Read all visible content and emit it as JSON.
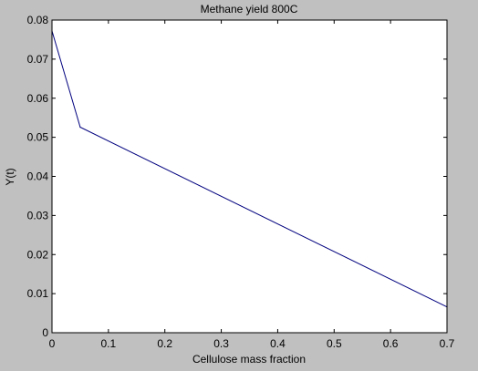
{
  "chart_data": {
    "type": "line",
    "title": "Methane yield 800C",
    "xlabel": "Cellulose mass fraction",
    "ylabel": "Y(t)",
    "xlim": [
      0,
      0.7
    ],
    "ylim": [
      0,
      0.08
    ],
    "x_ticks": [
      "0",
      "0.1",
      "0.2",
      "0.3",
      "0.4",
      "0.5",
      "0.6",
      "0.7"
    ],
    "y_ticks": [
      "0",
      "0.01",
      "0.02",
      "0.03",
      "0.04",
      "0.05",
      "0.06",
      "0.07",
      "0.08"
    ],
    "grid": false,
    "series": [
      {
        "color": "#00007f",
        "x": [
          0,
          0.05,
          0.7
        ],
        "y": [
          0.0772,
          0.0526,
          0.0066
        ]
      }
    ],
    "colors": {
      "figure_background": "#c0c0c0",
      "axes_background": "#ffffff",
      "line": "#00007f"
    }
  }
}
